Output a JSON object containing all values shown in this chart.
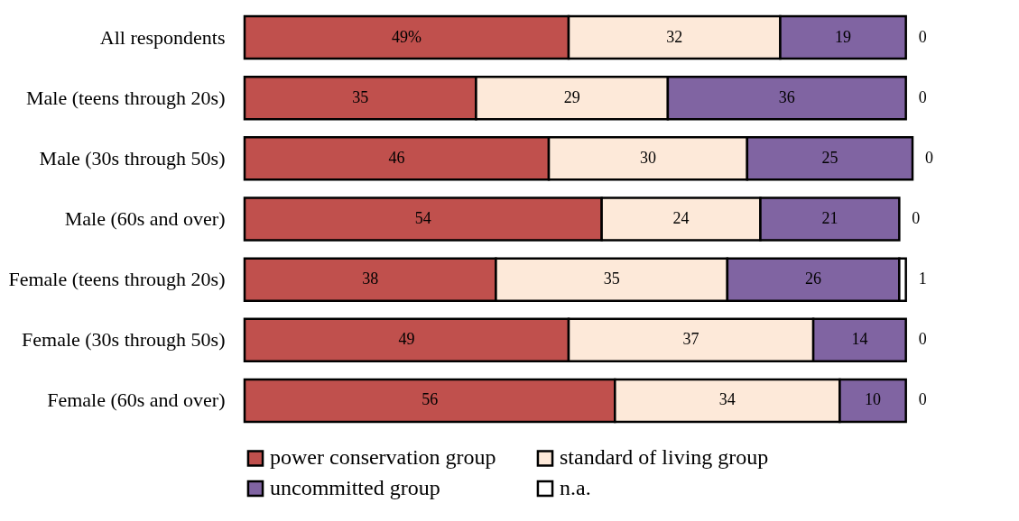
{
  "chart_data": {
    "type": "bar",
    "orientation": "horizontal",
    "stacked": true,
    "legend": "bottom",
    "categories": [
      "All respondents",
      "Male (teens through 20s)",
      "Male (30s through 50s)",
      "Male (60s and over)",
      "Female (teens through 20s)",
      "Female (30s through 50s)",
      "Female (60s and over)"
    ],
    "series": [
      {
        "name": "power conservation group",
        "color": "#c0504d",
        "values": [
          49,
          35,
          46,
          54,
          38,
          49,
          56
        ],
        "value_labels": [
          "49%",
          "35",
          "46",
          "54",
          "38",
          "49",
          "56"
        ]
      },
      {
        "name": "standard of living group",
        "color": "#fde9d9",
        "values": [
          32,
          29,
          30,
          24,
          35,
          37,
          34
        ],
        "value_labels": [
          "32",
          "29",
          "30",
          "24",
          "35",
          "37",
          "34"
        ]
      },
      {
        "name": "uncommitted group",
        "color": "#8064a2",
        "values": [
          19,
          36,
          25,
          21,
          26,
          14,
          10
        ],
        "value_labels": [
          "19",
          "36",
          "25",
          "21",
          "26",
          "14",
          "10"
        ]
      },
      {
        "name": "n.a.",
        "color": "#ffffff",
        "values": [
          0,
          0,
          0,
          0,
          1,
          0,
          0
        ],
        "value_labels": [
          "0",
          "0",
          "0",
          "0",
          "1",
          "0",
          "0"
        ]
      }
    ]
  }
}
